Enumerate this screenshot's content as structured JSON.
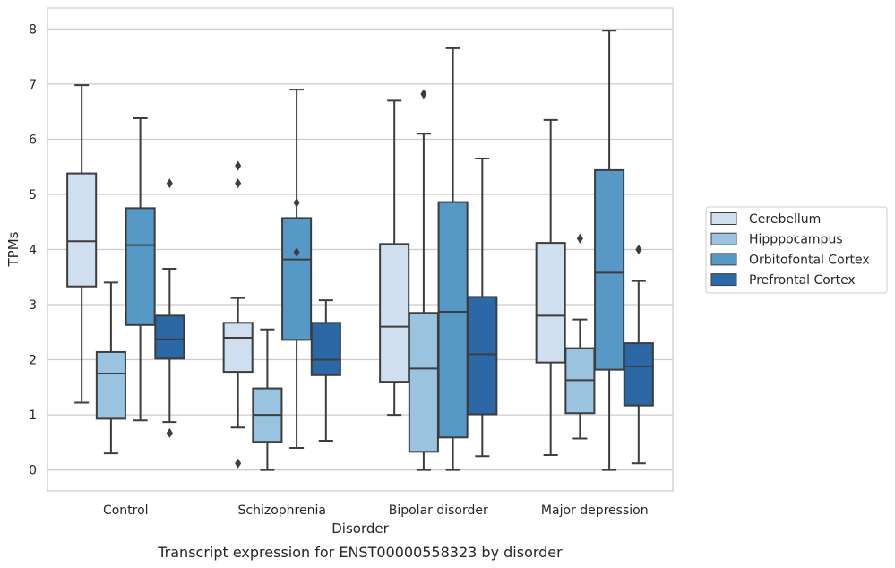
{
  "chart_data": {
    "type": "boxplot",
    "xlabel": "Disorder",
    "ylabel": "TPMs",
    "caption": "Transcript expression for ENST00000558323 by disorder",
    "categories": [
      "Control",
      "Schizophrenia",
      "Bipolar disorder",
      "Major depression"
    ],
    "ylim": [
      -0.38,
      8.38
    ],
    "yticks": [
      0,
      1,
      2,
      3,
      4,
      5,
      6,
      7,
      8
    ],
    "grid": true,
    "legend_position": "right",
    "series": [
      {
        "name": "Cerebellum",
        "color": "#cfdff0",
        "boxes": [
          {
            "whislo": 1.22,
            "q1": 3.33,
            "med": 4.15,
            "q3": 5.38,
            "whishi": 6.98,
            "fliers": []
          },
          {
            "whislo": 0.77,
            "q1": 1.78,
            "med": 2.4,
            "q3": 2.67,
            "whishi": 3.12,
            "fliers": [
              5.52,
              5.2,
              0.12
            ]
          },
          {
            "whislo": 1.0,
            "q1": 1.6,
            "med": 2.6,
            "q3": 4.1,
            "whishi": 6.7,
            "fliers": []
          },
          {
            "whislo": 0.27,
            "q1": 1.95,
            "med": 2.8,
            "q3": 4.12,
            "whishi": 6.35,
            "fliers": []
          }
        ]
      },
      {
        "name": "Hipppocampus",
        "color": "#9ac3e0",
        "boxes": [
          {
            "whislo": 0.3,
            "q1": 0.93,
            "med": 1.75,
            "q3": 2.14,
            "whishi": 3.4,
            "fliers": []
          },
          {
            "whislo": 0.0,
            "q1": 0.51,
            "med": 1.0,
            "q3": 1.48,
            "whishi": 2.55,
            "fliers": []
          },
          {
            "whislo": 0.0,
            "q1": 0.33,
            "med": 1.84,
            "q3": 2.85,
            "whishi": 6.1,
            "fliers": [
              6.82
            ]
          },
          {
            "whislo": 0.57,
            "q1": 1.03,
            "med": 1.63,
            "q3": 2.21,
            "whishi": 2.73,
            "fliers": [
              4.2
            ]
          }
        ]
      },
      {
        "name": "Orbitofontal Cortex",
        "color": "#5699c6",
        "boxes": [
          {
            "whislo": 0.9,
            "q1": 2.63,
            "med": 4.08,
            "q3": 4.75,
            "whishi": 6.38,
            "fliers": []
          },
          {
            "whislo": 0.4,
            "q1": 2.36,
            "med": 3.82,
            "q3": 4.57,
            "whishi": 6.9,
            "fliers": [
              4.85,
              3.95
            ]
          },
          {
            "whislo": 0.0,
            "q1": 0.59,
            "med": 2.87,
            "q3": 4.86,
            "whishi": 7.65,
            "fliers": []
          },
          {
            "whislo": 0.0,
            "q1": 1.82,
            "med": 3.58,
            "q3": 5.44,
            "whishi": 7.97,
            "fliers": []
          }
        ]
      },
      {
        "name": "Prefrontal Cortex",
        "color": "#2b68a5",
        "boxes": [
          {
            "whislo": 0.87,
            "q1": 2.02,
            "med": 2.37,
            "q3": 2.8,
            "whishi": 3.65,
            "fliers": [
              5.2,
              0.67
            ]
          },
          {
            "whislo": 0.53,
            "q1": 1.72,
            "med": 2.0,
            "q3": 2.67,
            "whishi": 3.08,
            "fliers": []
          },
          {
            "whislo": 0.25,
            "q1": 1.01,
            "med": 2.1,
            "q3": 3.14,
            "whishi": 5.65,
            "fliers": []
          },
          {
            "whislo": 0.12,
            "q1": 1.17,
            "med": 1.88,
            "q3": 2.3,
            "whishi": 3.43,
            "fliers": [
              4.0
            ]
          }
        ]
      }
    ]
  }
}
